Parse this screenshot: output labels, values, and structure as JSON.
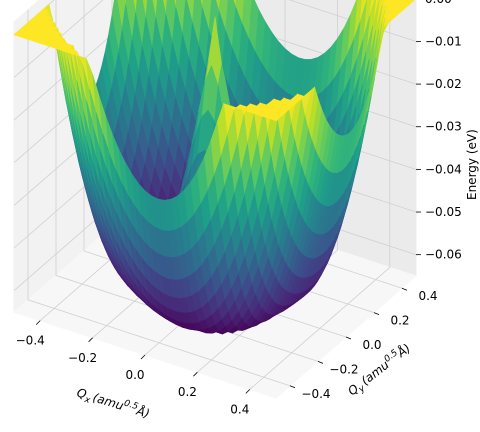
{
  "chart_data": {
    "type": "surface3d",
    "title": "",
    "xlabel": "Q_x (amu^0.5 Å)",
    "ylabel": "Q_y (amu^0.5 Å)",
    "zlabel": "Energy (eV)",
    "xlabel_parts": {
      "q": "Q",
      "sub": "x",
      "pre": "(amu",
      "sup": "0.5",
      "post": "Å)"
    },
    "ylabel_parts": {
      "q": "Q",
      "sub": "y",
      "pre": "(amu",
      "sup": "0.5",
      "post": "Å)"
    },
    "zlabel_text": "Energy (eV)",
    "xlim": [
      -0.5,
      0.5
    ],
    "ylim": [
      -0.5,
      0.5
    ],
    "zlim": [
      -0.065,
      0.003
    ],
    "x_ticks": [
      "−0.4",
      "−0.2",
      "0.0",
      "0.2",
      "0.4"
    ],
    "x_tick_values": [
      -0.4,
      -0.2,
      0.0,
      0.2,
      0.4
    ],
    "y_ticks": [
      "−0.4",
      "−0.2",
      "0.0",
      "0.2",
      "0.4"
    ],
    "y_tick_values": [
      -0.4,
      -0.2,
      0.0,
      0.2,
      0.4
    ],
    "z_ticks": [
      "0.00",
      "−0.01",
      "−0.02",
      "−0.03",
      "−0.04",
      "−0.05",
      "−0.06"
    ],
    "z_tick_values": [
      0.0,
      -0.01,
      -0.02,
      -0.03,
      -0.04,
      -0.05,
      -0.06
    ],
    "surface": {
      "description": "Jahn-Teller mexican-hat energy surface with three-fold warping",
      "min_energy": -0.063,
      "max_energy": 0.0,
      "well_radius": 0.28,
      "central_peak_energy": -0.042,
      "colormap": "viridis"
    },
    "grid": true
  }
}
